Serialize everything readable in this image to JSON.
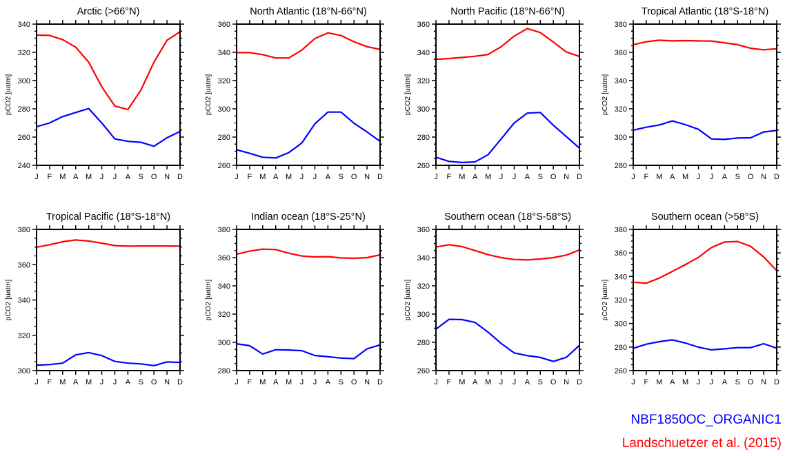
{
  "colors": {
    "model": "#0000ff",
    "obs": "#ff0000",
    "axis": "#000000"
  },
  "legend": {
    "model": "NBF1850OC_ORGANIC1",
    "obs": "Landschuetzer et al. (2015)"
  },
  "chart_data": [
    {
      "type": "line",
      "title": "Arctic (>66°N)",
      "xlabel": "",
      "ylabel": "pCO2 [uatm]",
      "ylim": [
        240,
        340
      ],
      "yticks": [
        240,
        260,
        280,
        300,
        320,
        340
      ],
      "categories": [
        "J",
        "F",
        "M",
        "A",
        "M",
        "J",
        "J",
        "A",
        "S",
        "O",
        "N",
        "D"
      ],
      "series": [
        {
          "name": "Landschuetzer et al. (2015)",
          "values": [
            332.2,
            332,
            329,
            323.7,
            313,
            295.6,
            282,
            279.5,
            293.3,
            313,
            328.6,
            334.6
          ]
        },
        {
          "name": "NBF1850OC_ORGANIC1",
          "values": [
            267.3,
            270,
            274.5,
            277.4,
            280.2,
            270,
            258.7,
            257,
            256.3,
            253.5,
            259.5,
            264
          ]
        }
      ]
    },
    {
      "type": "line",
      "title": "North Atlantic (18°N-66°N)",
      "xlabel": "",
      "ylabel": "pCO2 [uatm]",
      "ylim": [
        260,
        360
      ],
      "yticks": [
        260,
        280,
        300,
        320,
        340,
        360
      ],
      "categories": [
        "J",
        "F",
        "M",
        "A",
        "M",
        "J",
        "J",
        "A",
        "S",
        "O",
        "N",
        "D"
      ],
      "series": [
        {
          "name": "Landschuetzer et al. (2015)",
          "values": [
            339.8,
            339.8,
            338.4,
            336,
            336,
            341.6,
            349.8,
            353.8,
            351.9,
            347.5,
            344,
            342.1
          ]
        },
        {
          "name": "NBF1850OC_ORGANIC1",
          "values": [
            271,
            268.5,
            265.7,
            265.2,
            269,
            275.8,
            289.4,
            297.7,
            297.7,
            289.8,
            283.6,
            277
          ]
        }
      ]
    },
    {
      "type": "line",
      "title": "North Pacific (18°N-66°N)",
      "xlabel": "",
      "ylabel": "pCO2 [uatm]",
      "ylim": [
        260,
        360
      ],
      "yticks": [
        260,
        280,
        300,
        320,
        340,
        360
      ],
      "categories": [
        "J",
        "F",
        "M",
        "A",
        "M",
        "J",
        "J",
        "A",
        "S",
        "O",
        "N",
        "D"
      ],
      "series": [
        {
          "name": "Landschuetzer et al. (2015)",
          "values": [
            335.1,
            335.6,
            336.4,
            337.2,
            338.5,
            344,
            351.5,
            356.9,
            354,
            347.3,
            340.2,
            337.1
          ]
        },
        {
          "name": "NBF1850OC_ORGANIC1",
          "values": [
            265.7,
            262.8,
            262,
            262.4,
            267.5,
            278.7,
            290,
            297,
            297.4,
            288.4,
            280.3,
            272.2
          ]
        }
      ]
    },
    {
      "type": "line",
      "title": "Tropical Atlantic (18°S-18°N)",
      "xlabel": "",
      "ylabel": "pCO2 [uatm]",
      "ylim": [
        280,
        380
      ],
      "yticks": [
        280,
        300,
        320,
        340,
        360,
        380
      ],
      "categories": [
        "J",
        "F",
        "M",
        "A",
        "M",
        "J",
        "J",
        "A",
        "S",
        "O",
        "N",
        "D"
      ],
      "series": [
        {
          "name": "Landschuetzer et al. (2015)",
          "values": [
            365.4,
            367.5,
            368.6,
            368.1,
            368.3,
            368.1,
            368,
            366.8,
            365.4,
            362.9,
            361.8,
            362.6
          ]
        },
        {
          "name": "NBF1850OC_ORGANIC1",
          "values": [
            304.9,
            307,
            308.6,
            311.4,
            308.8,
            305.5,
            298.7,
            298.4,
            299.3,
            299.5,
            303.6,
            304.7
          ]
        }
      ]
    },
    {
      "type": "line",
      "title": "Tropical Pacific (18°S-18°N)",
      "xlabel": "",
      "ylabel": "pCO2 [uatm]",
      "ylim": [
        300,
        380
      ],
      "yticks": [
        300,
        320,
        340,
        360,
        380
      ],
      "categories": [
        "J",
        "F",
        "M",
        "A",
        "M",
        "J",
        "J",
        "A",
        "S",
        "O",
        "N",
        "D"
      ],
      "series": [
        {
          "name": "Landschuetzer et al. (2015)",
          "values": [
            369.9,
            371.3,
            373,
            374,
            373.4,
            372.2,
            370.8,
            370.5,
            370.6,
            370.6,
            370.6,
            370.5
          ]
        },
        {
          "name": "NBF1850OC_ORGANIC1",
          "values": [
            303.1,
            303.4,
            304.2,
            308.9,
            310.2,
            308.5,
            305.2,
            304.2,
            303.8,
            302.8,
            304.9,
            304.6
          ]
        }
      ]
    },
    {
      "type": "line",
      "title": "Indian ocean (18°S-25°N)",
      "xlabel": "",
      "ylabel": "pCO2 [uatm]",
      "ylim": [
        280,
        380
      ],
      "yticks": [
        280,
        300,
        320,
        340,
        360,
        380
      ],
      "categories": [
        "J",
        "F",
        "M",
        "A",
        "M",
        "J",
        "J",
        "A",
        "S",
        "O",
        "N",
        "D"
      ],
      "series": [
        {
          "name": "Landschuetzer et al. (2015)",
          "values": [
            362.4,
            364.6,
            366,
            365.7,
            363.1,
            361.1,
            360.5,
            360.7,
            359.8,
            359.5,
            360,
            362
          ]
        },
        {
          "name": "NBF1850OC_ORGANIC1",
          "values": [
            299,
            297.6,
            291.7,
            294.8,
            294.6,
            294.1,
            290.7,
            289.8,
            288.9,
            288.5,
            295.4,
            298.2
          ]
        }
      ]
    },
    {
      "type": "line",
      "title": "Southern ocean (18°S-58°S)",
      "xlabel": "",
      "ylabel": "pCO2 [uatm]",
      "ylim": [
        260,
        360
      ],
      "yticks": [
        260,
        280,
        300,
        320,
        340,
        360
      ],
      "categories": [
        "J",
        "F",
        "M",
        "A",
        "M",
        "J",
        "J",
        "A",
        "S",
        "O",
        "N",
        "D"
      ],
      "series": [
        {
          "name": "Landschuetzer et al. (2015)",
          "values": [
            347.5,
            349.1,
            347.8,
            345,
            342.1,
            340,
            338.7,
            338.4,
            339,
            340,
            341.8,
            345.4
          ]
        },
        {
          "name": "NBF1850OC_ORGANIC1",
          "values": [
            289.3,
            296.3,
            296.1,
            294.1,
            287.2,
            279.2,
            272.5,
            270.6,
            269.3,
            266.5,
            269.4,
            277.9
          ]
        }
      ]
    },
    {
      "type": "line",
      "title": "Southern ocean (>58°S)",
      "xlabel": "",
      "ylabel": "pCO2 [uatm]",
      "ylim": [
        260,
        380
      ],
      "yticks": [
        260,
        280,
        300,
        320,
        340,
        360,
        380
      ],
      "categories": [
        "J",
        "F",
        "M",
        "A",
        "M",
        "J",
        "J",
        "A",
        "S",
        "O",
        "N",
        "D"
      ],
      "series": [
        {
          "name": "Landschuetzer et al. (2015)",
          "values": [
            335.1,
            334.3,
            338.6,
            344.3,
            350.1,
            356.2,
            364.6,
            369.3,
            369.7,
            365.6,
            356.6,
            344.9
          ]
        },
        {
          "name": "NBF1850OC_ORGANIC1",
          "values": [
            278.9,
            282.4,
            284.6,
            286.1,
            283.4,
            279.9,
            277.6,
            278.5,
            279.5,
            279.5,
            282.8,
            279.1
          ]
        }
      ]
    }
  ]
}
